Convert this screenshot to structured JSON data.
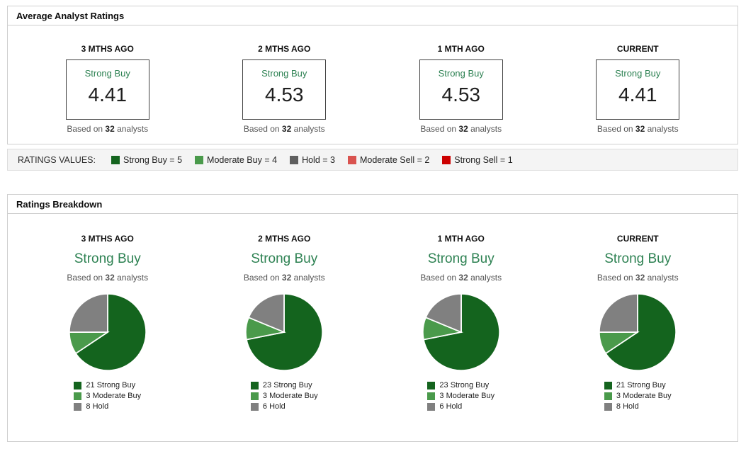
{
  "colors": {
    "strong_buy": "#14641e",
    "moderate_buy": "#4a9a4b",
    "hold": "#808080",
    "moderate_sell": "#d9534f",
    "strong_sell": "#cc0000",
    "rating_green": "#2e8253"
  },
  "panel_ratings": {
    "title": "Average Analyst Ratings",
    "columns": [
      {
        "period": "3 MTHS AGO",
        "rating": "Strong Buy",
        "value": "4.41",
        "based_prefix": "Based on ",
        "analysts": "32",
        "based_suffix": " analysts"
      },
      {
        "period": "2 MTHS AGO",
        "rating": "Strong Buy",
        "value": "4.53",
        "based_prefix": "Based on ",
        "analysts": "32",
        "based_suffix": " analysts"
      },
      {
        "period": "1 MTH AGO",
        "rating": "Strong Buy",
        "value": "4.53",
        "based_prefix": "Based on ",
        "analysts": "32",
        "based_suffix": " analysts"
      },
      {
        "period": "CURRENT",
        "rating": "Strong Buy",
        "value": "4.41",
        "based_prefix": "Based on ",
        "analysts": "32",
        "based_suffix": " analysts"
      }
    ]
  },
  "ratings_values": {
    "label": "RATINGS VALUES:",
    "items": [
      {
        "label": "Strong Buy = 5",
        "color": "#14641e"
      },
      {
        "label": "Moderate Buy = 4",
        "color": "#4a9a4b"
      },
      {
        "label": "Hold = 3",
        "color": "#5f5f5f"
      },
      {
        "label": "Moderate Sell = 2",
        "color": "#d9534f"
      },
      {
        "label": "Strong Sell = 1",
        "color": "#cc0000"
      }
    ]
  },
  "panel_breakdown": {
    "title": "Ratings Breakdown",
    "columns": [
      {
        "period": "3 MTHS AGO",
        "rating": "Strong Buy",
        "based_prefix": "Based on ",
        "analysts": "32",
        "based_suffix": " analysts"
      },
      {
        "period": "2 MTHS AGO",
        "rating": "Strong Buy",
        "based_prefix": "Based on ",
        "analysts": "32",
        "based_suffix": " analysts"
      },
      {
        "period": "1 MTH AGO",
        "rating": "Strong Buy",
        "based_prefix": "Based on ",
        "analysts": "32",
        "based_suffix": " analysts"
      },
      {
        "period": "CURRENT",
        "rating": "Strong Buy",
        "based_prefix": "Based on ",
        "analysts": "32",
        "based_suffix": " analysts"
      }
    ]
  },
  "chart_data": [
    {
      "type": "pie",
      "title": "3 MTHS AGO",
      "subtitle": "Strong Buy",
      "total_analysts": 32,
      "labels": [
        "Strong Buy",
        "Moderate Buy",
        "Hold"
      ],
      "values": [
        21,
        3,
        8
      ],
      "colors": [
        "#14641e",
        "#4a9a4b",
        "#808080"
      ],
      "legend_position": "bottom",
      "start_angle_deg": -90,
      "direction": "clockwise"
    },
    {
      "type": "pie",
      "title": "2 MTHS AGO",
      "subtitle": "Strong Buy",
      "total_analysts": 32,
      "labels": [
        "Strong Buy",
        "Moderate Buy",
        "Hold"
      ],
      "values": [
        23,
        3,
        6
      ],
      "colors": [
        "#14641e",
        "#4a9a4b",
        "#808080"
      ],
      "legend_position": "bottom",
      "start_angle_deg": -90,
      "direction": "clockwise"
    },
    {
      "type": "pie",
      "title": "1 MTH AGO",
      "subtitle": "Strong Buy",
      "total_analysts": 32,
      "labels": [
        "Strong Buy",
        "Moderate Buy",
        "Hold"
      ],
      "values": [
        23,
        3,
        6
      ],
      "colors": [
        "#14641e",
        "#4a9a4b",
        "#808080"
      ],
      "legend_position": "bottom",
      "start_angle_deg": -90,
      "direction": "clockwise"
    },
    {
      "type": "pie",
      "title": "CURRENT",
      "subtitle": "Strong Buy",
      "total_analysts": 32,
      "labels": [
        "Strong Buy",
        "Moderate Buy",
        "Hold"
      ],
      "values": [
        21,
        3,
        8
      ],
      "colors": [
        "#14641e",
        "#4a9a4b",
        "#808080"
      ],
      "legend_position": "bottom",
      "start_angle_deg": -90,
      "direction": "clockwise"
    }
  ]
}
